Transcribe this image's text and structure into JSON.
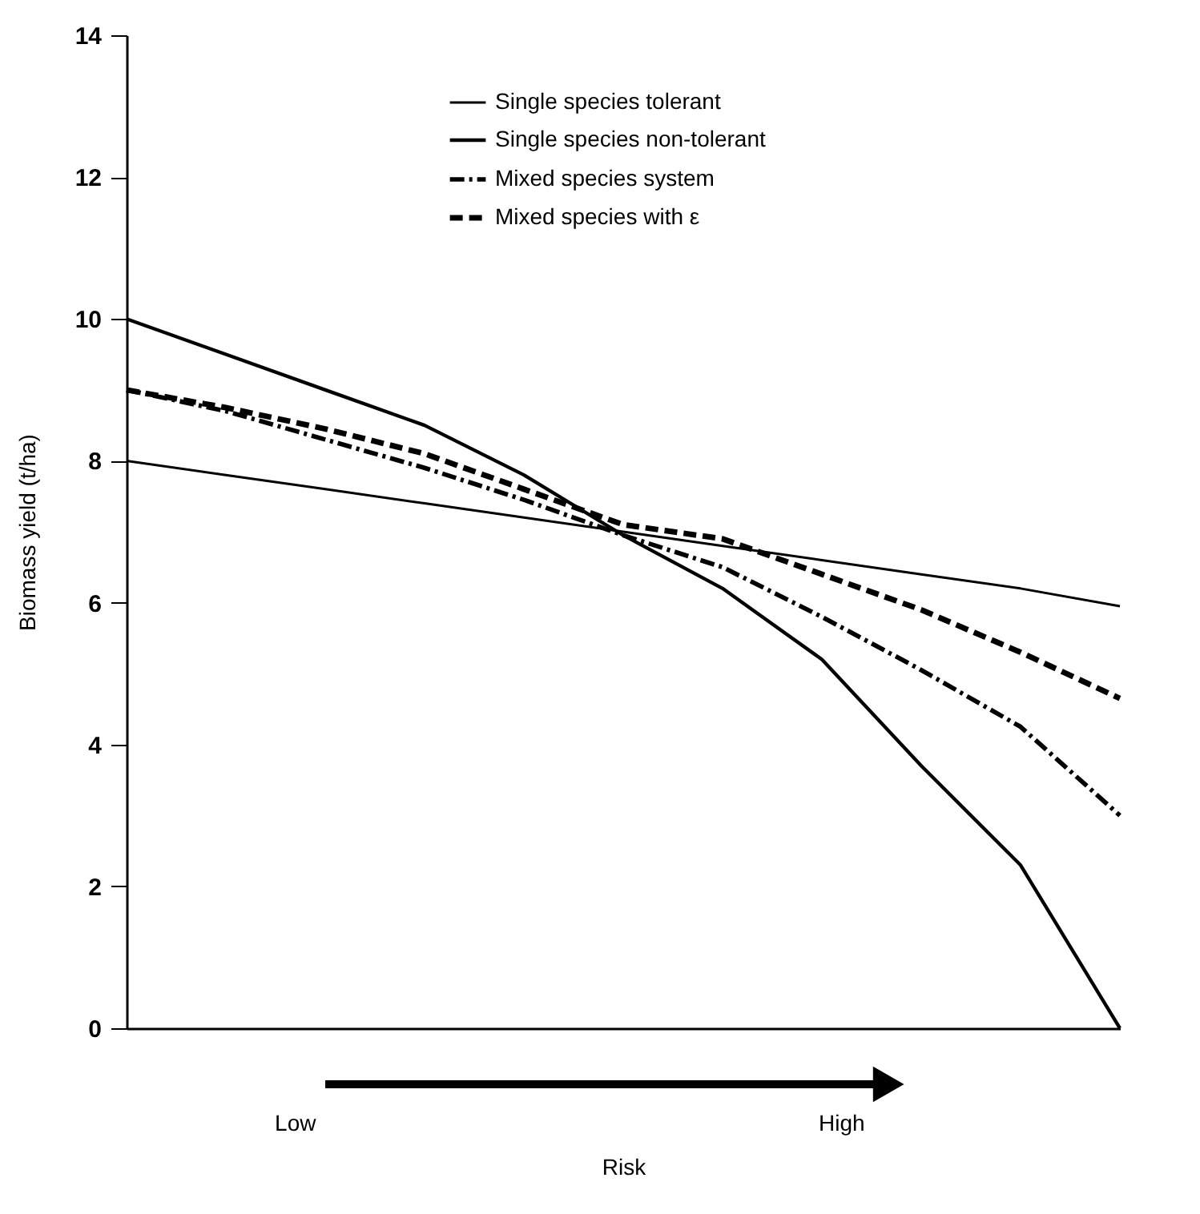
{
  "chart_data": {
    "type": "line",
    "xlabel": "Risk",
    "ylabel": "Biomass yield (t/ha)",
    "categories": [
      null,
      null,
      null,
      null,
      null,
      null,
      null,
      null,
      null,
      null,
      null
    ],
    "ylim": [
      0,
      14
    ],
    "yticks": [
      0,
      2,
      4,
      6,
      8,
      10,
      12,
      14
    ],
    "grid": false,
    "legend": "top right",
    "tick_labels": "y",
    "marker": "none",
    "annotations": [
      "Low",
      "High"
    ],
    "series": [
      {
        "name": "Single species tolerant",
        "color": "#000000",
        "line_style": "solid",
        "values": [
          8,
          7.8,
          7.6,
          7.4,
          7.2,
          7.0,
          6.8,
          6.6,
          6.4,
          6.2,
          5.95
        ]
      },
      {
        "name": "Single species non-tolerant",
        "color": "#000000",
        "line_style": "solid",
        "values": [
          10,
          9.5,
          9.0,
          8.5,
          7.8,
          6.95,
          6.2,
          5.2,
          3.7,
          2.3,
          0
        ]
      },
      {
        "name": "Mixed species system",
        "color": "#000000",
        "line_style": "dashdot",
        "values": [
          9,
          8.7,
          8.3,
          7.9,
          7.45,
          6.95,
          6.5,
          5.8,
          5.05,
          4.25,
          3.0
        ]
      },
      {
        "name": "Mixed species with ε",
        "color": "#000000",
        "line_style": "dashed",
        "values": [
          9,
          8.75,
          8.45,
          8.1,
          7.6,
          7.1,
          6.9,
          6.4,
          5.9,
          5.3,
          4.65
        ]
      }
    ]
  }
}
